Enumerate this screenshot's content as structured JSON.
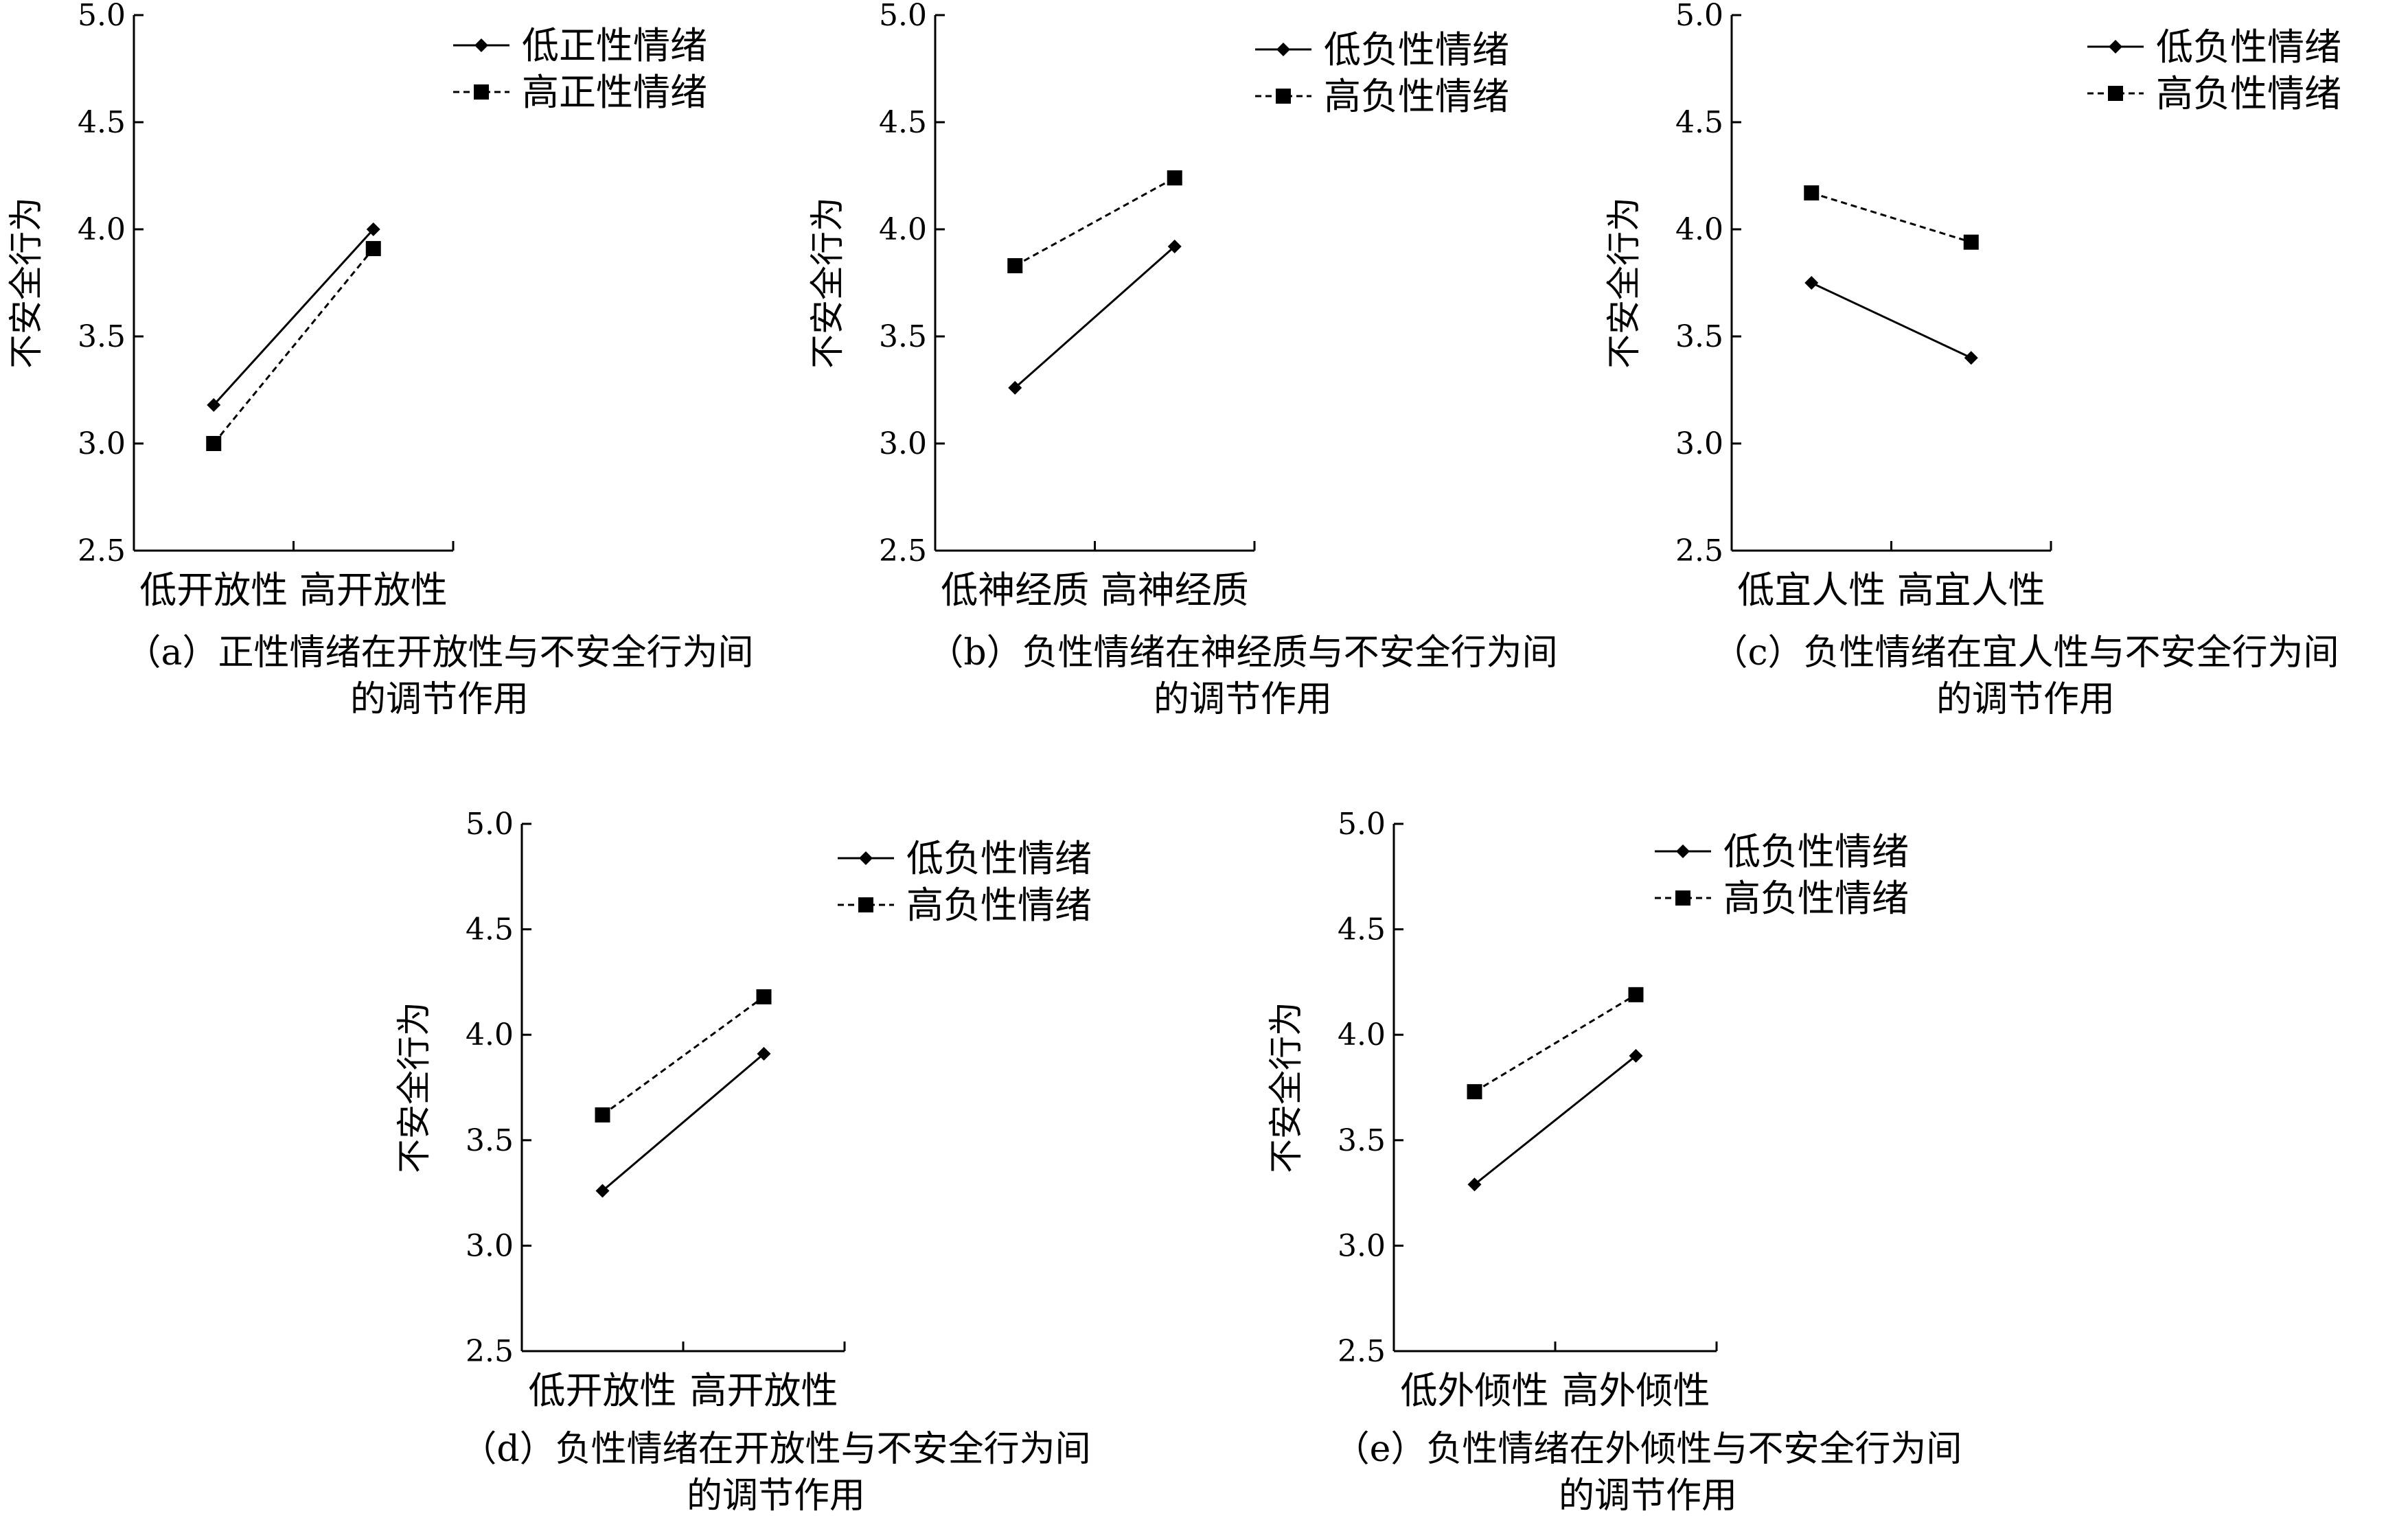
{
  "chart_data": [
    {
      "type": "line",
      "panel": "a",
      "ylabel": "不安全行为",
      "ylim": [
        2.5,
        5.0
      ],
      "yticks": [
        "5.0",
        "4.5",
        "4.0",
        "3.5",
        "3.0",
        "2.5"
      ],
      "categories": [
        "低开放性",
        "高开放性"
      ],
      "series": [
        {
          "name": "低正性情绪",
          "values": [
            3.18,
            4.0
          ],
          "marker": "diamond",
          "line": "solid"
        },
        {
          "name": "高正性情绪",
          "values": [
            3.0,
            3.91
          ],
          "marker": "square",
          "line": "dashed"
        }
      ],
      "caption": [
        "（a）正性情绪在开放性与不安全行为间",
        "的调节作用"
      ]
    },
    {
      "type": "line",
      "panel": "b",
      "ylabel": "不安全行为",
      "ylim": [
        2.5,
        5.0
      ],
      "yticks": [
        "5.0",
        "4.5",
        "4.0",
        "3.5",
        "3.0",
        "2.5"
      ],
      "categories": [
        "低神经质",
        "高神经质"
      ],
      "series": [
        {
          "name": "低负性情绪",
          "values": [
            3.26,
            3.92
          ],
          "marker": "diamond",
          "line": "solid"
        },
        {
          "name": "高负性情绪",
          "values": [
            3.83,
            4.24
          ],
          "marker": "square",
          "line": "dashed"
        }
      ],
      "caption": [
        "（b）负性情绪在神经质与不安全行为间",
        "的调节作用"
      ]
    },
    {
      "type": "line",
      "panel": "c",
      "ylabel": "不安全行为",
      "ylim": [
        2.5,
        5.0
      ],
      "yticks": [
        "5.0",
        "4.5",
        "4.0",
        "3.5",
        "3.0",
        "2.5"
      ],
      "categories": [
        "低宜人性",
        "高宜人性"
      ],
      "series": [
        {
          "name": "低负性情绪",
          "values": [
            3.75,
            3.4
          ],
          "marker": "diamond",
          "line": "solid"
        },
        {
          "name": "高负性情绪",
          "values": [
            4.17,
            3.94
          ],
          "marker": "square",
          "line": "dashed"
        }
      ],
      "caption": [
        "（c）负性情绪在宜人性与不安全行为间",
        "的调节作用"
      ]
    },
    {
      "type": "line",
      "panel": "d",
      "ylabel": "不安全行为",
      "ylim": [
        2.5,
        5.0
      ],
      "yticks": [
        "5.0",
        "4.5",
        "4.0",
        "3.5",
        "3.0",
        "2.5"
      ],
      "categories": [
        "低开放性",
        "高开放性"
      ],
      "series": [
        {
          "name": "低负性情绪",
          "values": [
            3.26,
            3.91
          ],
          "marker": "diamond",
          "line": "solid"
        },
        {
          "name": "高负性情绪",
          "values": [
            3.62,
            4.18
          ],
          "marker": "square",
          "line": "dashed"
        }
      ],
      "caption": [
        "（d）负性情绪在开放性与不安全行为间",
        "的调节作用"
      ]
    },
    {
      "type": "line",
      "panel": "e",
      "ylabel": "不安全行为",
      "ylim": [
        2.5,
        5.0
      ],
      "yticks": [
        "5.0",
        "4.5",
        "4.0",
        "3.5",
        "3.0",
        "2.5"
      ],
      "categories": [
        "低外倾性",
        "高外倾性"
      ],
      "series": [
        {
          "name": "低负性情绪",
          "values": [
            3.29,
            3.9
          ],
          "marker": "diamond",
          "line": "solid"
        },
        {
          "name": "高负性情绪",
          "values": [
            3.73,
            4.19
          ],
          "marker": "square",
          "line": "dashed"
        }
      ],
      "caption": [
        "（e）负性情绪在外倾性与不安全行为间",
        "的调节作用"
      ]
    }
  ]
}
